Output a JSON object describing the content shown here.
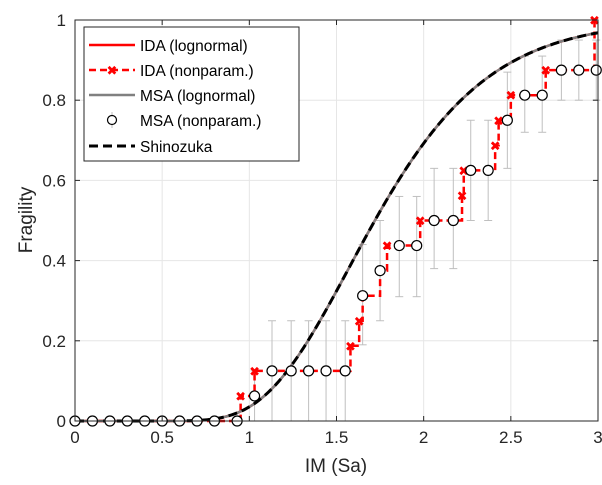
{
  "chart_data": {
    "type": "line",
    "title": "",
    "xlabel": "IM (Sa)",
    "ylabel": "Fragility",
    "xlim": [
      0,
      3
    ],
    "ylim": [
      0,
      1
    ],
    "xticks": [
      "0",
      "0.5",
      "1",
      "1.5",
      "2",
      "2.5",
      "3"
    ],
    "yticks": [
      "0",
      "0.2",
      "0.4",
      "0.6",
      "0.8",
      "1"
    ],
    "grid": true,
    "legend_position": "top-left",
    "legend": [
      "IDA (lognormal)",
      "IDA (nonparam.)",
      "MSA (lognormal)",
      "MSA (nonparam.)",
      "Shinozuka"
    ],
    "colors": {
      "ida_lognormal": "#ff0000",
      "ida_nonparam": "#ff0000",
      "msa_lognormal": "#808080",
      "msa_nonparam_marker": "#000000",
      "shinozuka": "#000000",
      "errorbar": "#bfbfbf"
    },
    "lognormal_params": {
      "median": 1.72,
      "beta": 0.3
    },
    "ida_nonparam_steps": [
      [
        0.0,
        0.0
      ],
      [
        0.95,
        0.0
      ],
      [
        0.95,
        0.0625
      ],
      [
        1.03,
        0.0625
      ],
      [
        1.03,
        0.125
      ],
      [
        1.58,
        0.125
      ],
      [
        1.58,
        0.1875
      ],
      [
        1.63,
        0.1875
      ],
      [
        1.63,
        0.25
      ],
      [
        1.65,
        0.25
      ],
      [
        1.65,
        0.3125
      ],
      [
        1.75,
        0.3125
      ],
      [
        1.75,
        0.375
      ],
      [
        1.79,
        0.375
      ],
      [
        1.79,
        0.4375
      ],
      [
        1.98,
        0.4375
      ],
      [
        1.98,
        0.5
      ],
      [
        2.22,
        0.5
      ],
      [
        2.22,
        0.5625
      ],
      [
        2.23,
        0.5625
      ],
      [
        2.23,
        0.625
      ],
      [
        2.41,
        0.625
      ],
      [
        2.41,
        0.6875
      ],
      [
        2.43,
        0.6875
      ],
      [
        2.43,
        0.75
      ],
      [
        2.5,
        0.75
      ],
      [
        2.5,
        0.8125
      ],
      [
        2.7,
        0.8125
      ],
      [
        2.7,
        0.875
      ],
      [
        2.98,
        0.875
      ],
      [
        2.98,
        1.0
      ],
      [
        3.0,
        1.0
      ]
    ],
    "msa_nonparam_points": [
      {
        "x": 0.0,
        "y": 0.0,
        "lo": 0.0,
        "hi": 0.0
      },
      {
        "x": 0.1,
        "y": 0.0,
        "lo": 0.0,
        "hi": 0.0
      },
      {
        "x": 0.2,
        "y": 0.0,
        "lo": 0.0,
        "hi": 0.0
      },
      {
        "x": 0.3,
        "y": 0.0,
        "lo": 0.0,
        "hi": 0.0
      },
      {
        "x": 0.4,
        "y": 0.0,
        "lo": 0.0,
        "hi": 0.0
      },
      {
        "x": 0.5,
        "y": 0.0,
        "lo": 0.0,
        "hi": 0.0
      },
      {
        "x": 0.6,
        "y": 0.0,
        "lo": 0.0,
        "hi": 0.0
      },
      {
        "x": 0.7,
        "y": 0.0,
        "lo": 0.0,
        "hi": 0.0
      },
      {
        "x": 0.8,
        "y": 0.0,
        "lo": 0.0,
        "hi": 0.0
      },
      {
        "x": 0.93,
        "y": 0.0,
        "lo": 0.0,
        "hi": 0.0
      },
      {
        "x": 1.03,
        "y": 0.0625,
        "lo": 0.0,
        "hi": 0.125
      },
      {
        "x": 1.13,
        "y": 0.125,
        "lo": 0.0,
        "hi": 0.25
      },
      {
        "x": 1.24,
        "y": 0.125,
        "lo": 0.0,
        "hi": 0.25
      },
      {
        "x": 1.34,
        "y": 0.125,
        "lo": 0.0,
        "hi": 0.25
      },
      {
        "x": 1.44,
        "y": 0.125,
        "lo": 0.0,
        "hi": 0.25
      },
      {
        "x": 1.55,
        "y": 0.125,
        "lo": 0.0,
        "hi": 0.25
      },
      {
        "x": 1.65,
        "y": 0.3125,
        "lo": 0.19,
        "hi": 0.44
      },
      {
        "x": 1.75,
        "y": 0.375,
        "lo": 0.25,
        "hi": 0.5
      },
      {
        "x": 1.86,
        "y": 0.4375,
        "lo": 0.31,
        "hi": 0.56
      },
      {
        "x": 1.96,
        "y": 0.4375,
        "lo": 0.31,
        "hi": 0.56
      },
      {
        "x": 2.06,
        "y": 0.5,
        "lo": 0.38,
        "hi": 0.63
      },
      {
        "x": 2.17,
        "y": 0.5,
        "lo": 0.38,
        "hi": 0.63
      },
      {
        "x": 2.27,
        "y": 0.625,
        "lo": 0.5,
        "hi": 0.75
      },
      {
        "x": 2.37,
        "y": 0.625,
        "lo": 0.5,
        "hi": 0.75
      },
      {
        "x": 2.48,
        "y": 0.75,
        "lo": 0.63,
        "hi": 0.87
      },
      {
        "x": 2.58,
        "y": 0.8125,
        "lo": 0.72,
        "hi": 0.91
      },
      {
        "x": 2.68,
        "y": 0.8125,
        "lo": 0.72,
        "hi": 0.91
      },
      {
        "x": 2.79,
        "y": 0.875,
        "lo": 0.8,
        "hi": 0.95
      },
      {
        "x": 2.89,
        "y": 0.875,
        "lo": 0.8,
        "hi": 0.95
      },
      {
        "x": 2.99,
        "y": 0.875,
        "lo": 0.8,
        "hi": 0.95
      }
    ]
  }
}
